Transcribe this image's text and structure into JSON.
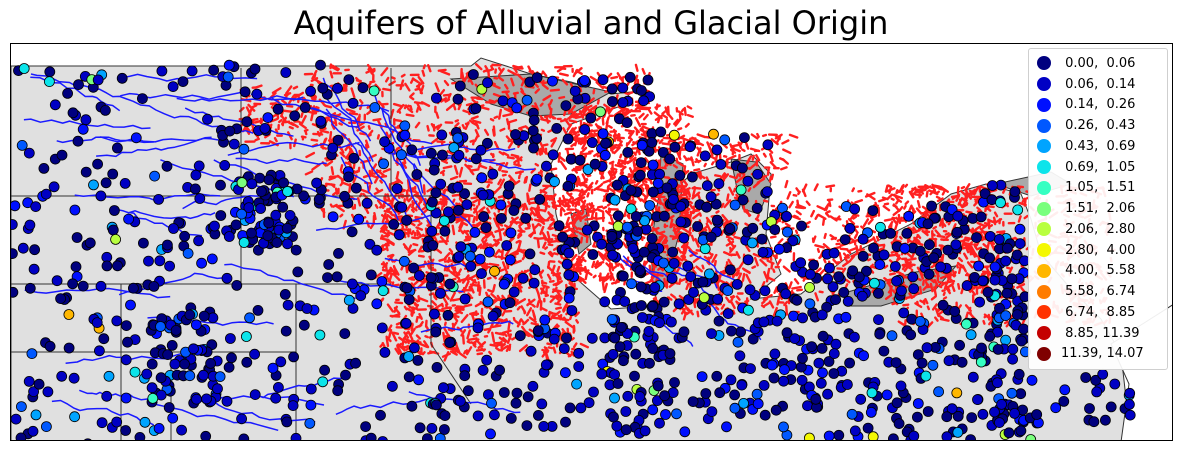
{
  "title": "Aquifers of Alluvial and Glacial Origin",
  "colors": {
    "land": "#e0e0e0",
    "water": "#a9a9a9",
    "boundary": "#333333",
    "aquifer": "#ff2020",
    "river": "#1a1aff",
    "marker_edge": "#000000"
  },
  "legend": {
    "placement": "top-right",
    "entries": [
      {
        "label": " 0.00,  0.06",
        "color": "#00007f"
      },
      {
        "label": " 0.06,  0.14",
        "color": "#0000c4"
      },
      {
        "label": " 0.14,  0.26",
        "color": "#0010ff"
      },
      {
        "label": " 0.26,  0.43",
        "color": "#0058ff"
      },
      {
        "label": " 0.43,  0.69",
        "color": "#00a4ff"
      },
      {
        "label": " 0.69,  1.05",
        "color": "#0ce4ea"
      },
      {
        "label": " 1.05,  1.51",
        "color": "#35ffc2"
      },
      {
        "label": " 1.51,  2.06",
        "color": "#7aff7d"
      },
      {
        "label": " 2.06,  2.80",
        "color": "#b8ff3f"
      },
      {
        "label": " 2.80,  4.00",
        "color": "#f4f802"
      },
      {
        "label": " 4.00,  5.58",
        "color": "#ffb700"
      },
      {
        "label": " 5.58,  6.74",
        "color": "#ff7c00"
      },
      {
        "label": " 6.74,  8.85",
        "color": "#ff3300"
      },
      {
        "label": " 8.85, 11.39",
        "color": "#c40000"
      },
      {
        "label": "11.39, 14.07",
        "color": "#7f0000"
      }
    ]
  }
}
